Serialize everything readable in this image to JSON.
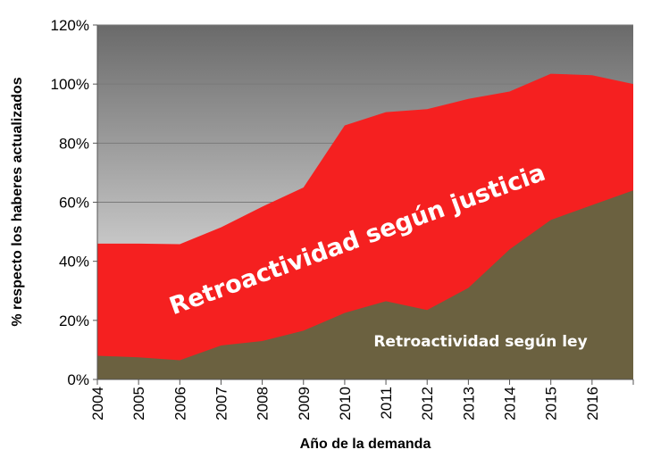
{
  "chart_data": {
    "type": "area",
    "stacked": false,
    "x": [
      2004,
      2005,
      2006,
      2007,
      2008,
      2009,
      2010,
      2011,
      2012,
      2013,
      2014,
      2015,
      2016,
      2017
    ],
    "x_tick_labels": [
      "2004",
      "2005",
      "2006",
      "2007",
      "2008",
      "2009",
      "2010",
      "2011",
      "2012",
      "2013",
      "2014",
      "2015",
      "2016"
    ],
    "series": [
      {
        "values": [
          46,
          46,
          45.8,
          51.5,
          58.5,
          65,
          86,
          90.5,
          91.5,
          95,
          97.5,
          103.5,
          103,
          100
        ],
        "color": "#f52020"
      },
      {
        "values": [
          8,
          7.5,
          6.5,
          11.5,
          13,
          16.5,
          22.5,
          26.5,
          23.5,
          31,
          44,
          54,
          59,
          64
        ],
        "color": "#6b6140"
      }
    ],
    "annotations": [
      {
        "id": "justicia",
        "text": "Retroactividad según justicia"
      },
      {
        "id": "ley",
        "text": "Retroactividad según ley"
      }
    ],
    "xlabel": "Año de la demanda",
    "ylabel": "% respecto los  haberes  actualizados",
    "ylim": [
      0,
      120
    ],
    "yticks": [
      0,
      20,
      40,
      60,
      80,
      100,
      120
    ],
    "ytick_suffix": "%",
    "grid": "horizontal",
    "legend": "none",
    "background_gradient": [
      "#6a6a6a",
      "#ffffff"
    ]
  }
}
